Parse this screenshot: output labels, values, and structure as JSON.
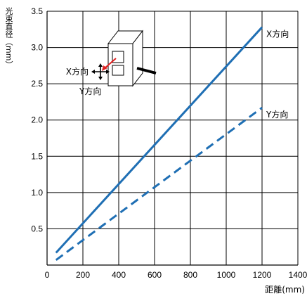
{
  "chart_data": {
    "type": "line",
    "ylabel": "光束直径（mm）",
    "xlabel": "距離(mm)",
    "xlim": [
      0,
      1400
    ],
    "ylim": [
      0,
      3.5
    ],
    "xticks": [
      "0",
      "200",
      "400",
      "600",
      "800",
      "1000",
      "1200",
      "1400"
    ],
    "yticks": [
      "0.5",
      "1.0",
      "1.5",
      "2.0",
      "2.5",
      "3.0",
      "3.5"
    ],
    "grid": true,
    "series": [
      {
        "name": "X方向",
        "style": "solid",
        "color": "#1f6fb4",
        "points": [
          [
            50,
            0.17
          ],
          [
            1200,
            3.28
          ]
        ]
      },
      {
        "name": "Y方向",
        "style": "dashed",
        "color": "#1f6fb4",
        "points": [
          [
            50,
            0.07
          ],
          [
            1200,
            2.17
          ]
        ]
      }
    ],
    "inset": {
      "x_label": "X方向",
      "y_label": "Y方向"
    }
  }
}
